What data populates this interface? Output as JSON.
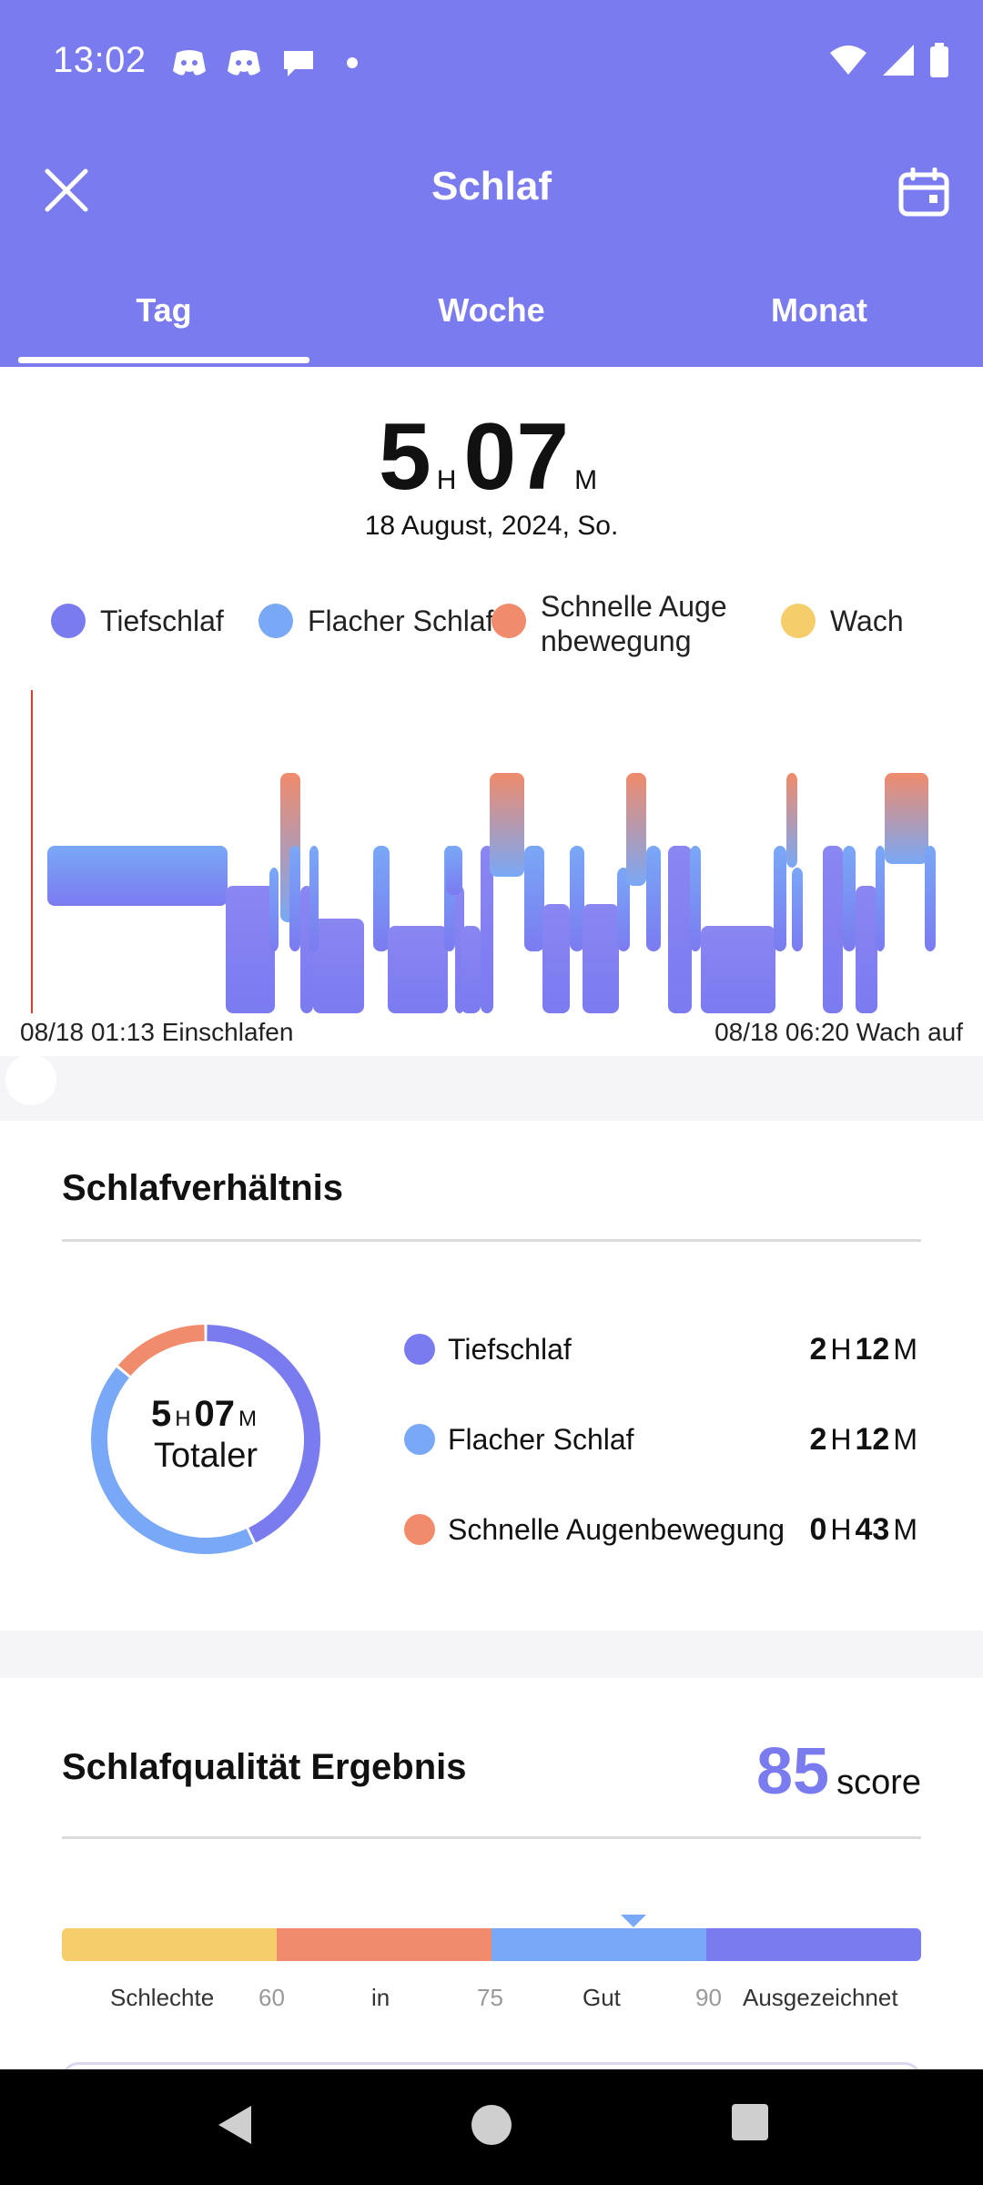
{
  "status_bar": {
    "time": "13:02"
  },
  "header": {
    "title": "Schlaf",
    "tabs": [
      "Tag",
      "Woche",
      "Monat"
    ],
    "active_tab": "Tag"
  },
  "summary": {
    "hours": "5",
    "hours_unit": "H",
    "minutes": "07",
    "minutes_unit": "M",
    "date": "18 August, 2024, So."
  },
  "legend": {
    "deep": "Tiefschlaf",
    "light": "Flacher Schlaf",
    "rem_line1": "Schnelle Auge",
    "rem_line2": "nbewegung",
    "awake": "Wach"
  },
  "colors": {
    "header": "#7b7bf0",
    "deep": "#7b7bf0",
    "light": "#79a8f6",
    "rem": "#f08b6b",
    "awake": "#f5cd6b"
  },
  "timeline": {
    "start_label": "08/18 01:13 Einschlafen",
    "end_label": "08/18 06:20 Wach auf"
  },
  "ratio": {
    "title": "Schlafverhältnis",
    "center_hours": "5",
    "center_hours_unit": "H",
    "center_minutes": "07",
    "center_minutes_unit": "M",
    "center_label": "Totaler",
    "rows": [
      {
        "name": "Tiefschlaf",
        "h": "2",
        "m": "12"
      },
      {
        "name": "Flacher Schlaf",
        "h": "2",
        "m": "12"
      },
      {
        "name": "Schnelle Augenbewegung",
        "h": "0",
        "m": "43"
      }
    ],
    "unit_h": "H",
    "unit_m": "M",
    "donut_minutes": {
      "deep": 132,
      "light": 132,
      "rem": 43
    }
  },
  "quality": {
    "title": "Schlafqualität Ergebnis",
    "score": "85",
    "score_unit": "score",
    "labels": [
      "Schlechte",
      "60",
      "in",
      "75",
      "Gut",
      "90",
      "Ausgezeichnet"
    ],
    "marker_value": 85
  }
}
